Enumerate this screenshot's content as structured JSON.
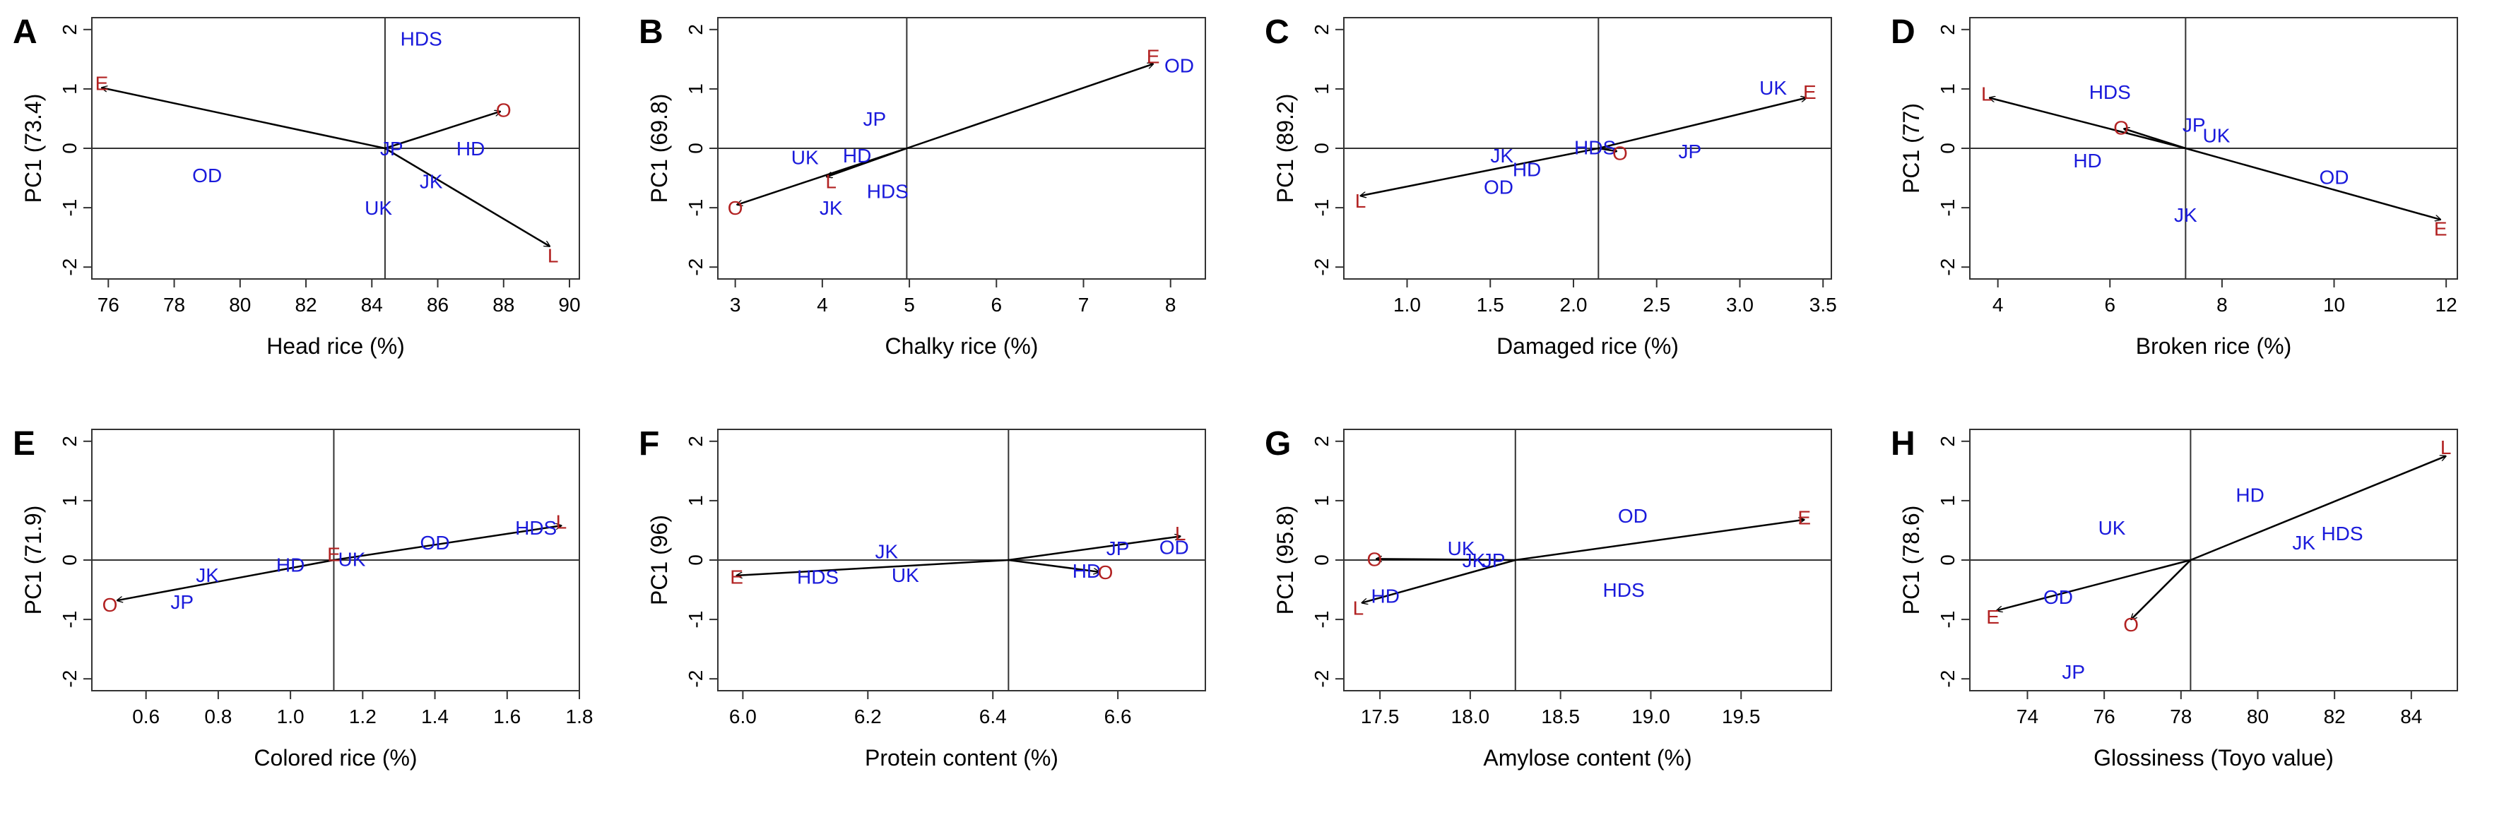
{
  "colors": {
    "genotype": "#1a1adb",
    "environment": "#b22222",
    "axes": "#333333",
    "arrow": "#000000"
  },
  "chart_data": [
    {
      "panel": "A",
      "type": "scatter",
      "xlabel": "Head rice (%)",
      "ylabel": "PC1 (73.4)",
      "xlim": [
        75.5,
        90.3
      ],
      "ylim": [
        -2.2,
        2.2
      ],
      "xticks": [
        76,
        78,
        80,
        82,
        84,
        86,
        88,
        90
      ],
      "xtick_labels": [
        "76",
        "78",
        "80",
        "82",
        "84",
        "86",
        "88",
        "90"
      ],
      "yticks": [
        -2,
        -1,
        0,
        1,
        2
      ],
      "ytick_labels": [
        "-2",
        "-1",
        "0",
        "1",
        "2"
      ],
      "ref_x": 84.4,
      "genotypes": [
        {
          "label": "HDS",
          "x": 85.5,
          "y": 1.85
        },
        {
          "label": "JP",
          "x": 84.6,
          "y": 0.0
        },
        {
          "label": "HD",
          "x": 87.0,
          "y": 0.0
        },
        {
          "label": "OD",
          "x": 79.0,
          "y": -0.45
        },
        {
          "label": "UK",
          "x": 84.2,
          "y": -1.0
        },
        {
          "label": "JK",
          "x": 85.8,
          "y": -0.55
        }
      ],
      "environments": [
        {
          "label": "E",
          "x": 75.8,
          "y": 1.1
        },
        {
          "label": "O",
          "x": 88.0,
          "y": 0.65
        },
        {
          "label": "L",
          "x": 89.5,
          "y": -1.8
        }
      ],
      "arrows": [
        {
          "from": [
            84.4,
            0.0
          ],
          "to": [
            75.8,
            1.02
          ]
        },
        {
          "from": [
            84.4,
            0.0
          ],
          "to": [
            87.9,
            0.62
          ]
        },
        {
          "from": [
            84.4,
            0.0
          ],
          "to": [
            89.4,
            -1.65
          ]
        }
      ]
    },
    {
      "panel": "B",
      "type": "scatter",
      "xlabel": "Chalky rice (%)",
      "ylabel": "PC1 (69.8)",
      "xlim": [
        2.8,
        8.4
      ],
      "ylim": [
        -2.2,
        2.2
      ],
      "xticks": [
        3,
        4,
        5,
        6,
        7,
        8
      ],
      "xtick_labels": [
        "3",
        "4",
        "5",
        "6",
        "7",
        "8"
      ],
      "yticks": [
        -2,
        -1,
        0,
        1,
        2
      ],
      "ytick_labels": [
        "-2",
        "-1",
        "0",
        "1",
        "2"
      ],
      "ref_x": 4.97,
      "genotypes": [
        {
          "label": "OD",
          "x": 8.1,
          "y": 1.4
        },
        {
          "label": "JP",
          "x": 4.6,
          "y": 0.5
        },
        {
          "label": "UK",
          "x": 3.8,
          "y": -0.15
        },
        {
          "label": "HD",
          "x": 4.4,
          "y": -0.12
        },
        {
          "label": "HDS",
          "x": 4.75,
          "y": -0.72
        },
        {
          "label": "JK",
          "x": 4.1,
          "y": -1.0
        }
      ],
      "environments": [
        {
          "label": "E",
          "x": 7.8,
          "y": 1.55
        },
        {
          "label": "L",
          "x": 4.1,
          "y": -0.55
        },
        {
          "label": "O",
          "x": 3.0,
          "y": -1.0
        }
      ],
      "arrows": [
        {
          "from": [
            4.97,
            0.0
          ],
          "to": [
            7.8,
            1.42
          ]
        },
        {
          "from": [
            4.97,
            0.0
          ],
          "to": [
            4.05,
            -0.48
          ]
        },
        {
          "from": [
            4.97,
            0.0
          ],
          "to": [
            3.02,
            -0.95
          ]
        }
      ]
    },
    {
      "panel": "C",
      "type": "scatter",
      "xlabel": "Damaged rice (%)",
      "ylabel": "PC1 (89.2)",
      "xlim": [
        0.62,
        3.55
      ],
      "ylim": [
        -2.2,
        2.2
      ],
      "xticks": [
        1.0,
        1.5,
        2.0,
        2.5,
        3.0,
        3.5
      ],
      "xtick_labels": [
        "1.0",
        "1.5",
        "2.0",
        "2.5",
        "3.0",
        "3.5"
      ],
      "yticks": [
        -2,
        -1,
        0,
        1,
        2
      ],
      "ytick_labels": [
        "-2",
        "-1",
        "0",
        "1",
        "2"
      ],
      "ref_x": 2.15,
      "genotypes": [
        {
          "label": "UK",
          "x": 3.2,
          "y": 1.02
        },
        {
          "label": "HDS",
          "x": 2.13,
          "y": 0.02
        },
        {
          "label": "JP",
          "x": 2.7,
          "y": -0.05
        },
        {
          "label": "JK",
          "x": 1.57,
          "y": -0.12
        },
        {
          "label": "HD",
          "x": 1.72,
          "y": -0.35
        },
        {
          "label": "OD",
          "x": 1.55,
          "y": -0.65
        }
      ],
      "environments": [
        {
          "label": "E",
          "x": 3.42,
          "y": 0.95
        },
        {
          "label": "O",
          "x": 2.28,
          "y": -0.08
        },
        {
          "label": "L",
          "x": 0.72,
          "y": -0.88
        }
      ],
      "arrows": [
        {
          "from": [
            2.15,
            0.0
          ],
          "to": [
            3.4,
            0.85
          ]
        },
        {
          "from": [
            2.15,
            0.0
          ],
          "to": [
            2.26,
            -0.05
          ]
        },
        {
          "from": [
            2.15,
            0.0
          ],
          "to": [
            0.72,
            -0.8
          ]
        }
      ]
    },
    {
      "panel": "D",
      "type": "scatter",
      "xlabel": "Broken rice (%)",
      "ylabel": "PC1 (77)",
      "xlim": [
        3.5,
        12.2
      ],
      "ylim": [
        -2.2,
        2.2
      ],
      "xticks": [
        4,
        6,
        8,
        10,
        12
      ],
      "xtick_labels": [
        "4",
        "6",
        "8",
        "10",
        "12"
      ],
      "yticks": [
        -2,
        -1,
        0,
        1,
        2
      ],
      "ytick_labels": [
        "-2",
        "-1",
        "0",
        "1",
        "2"
      ],
      "ref_x": 7.35,
      "genotypes": [
        {
          "label": "HDS",
          "x": 6.0,
          "y": 0.95
        },
        {
          "label": "JP",
          "x": 7.5,
          "y": 0.4
        },
        {
          "label": "UK",
          "x": 7.9,
          "y": 0.22
        },
        {
          "label": "HD",
          "x": 5.6,
          "y": -0.2
        },
        {
          "label": "OD",
          "x": 10.0,
          "y": -0.48
        },
        {
          "label": "JK",
          "x": 7.35,
          "y": -1.12
        }
      ],
      "environments": [
        {
          "label": "L",
          "x": 3.8,
          "y": 0.92
        },
        {
          "label": "O",
          "x": 6.2,
          "y": 0.35
        },
        {
          "label": "E",
          "x": 11.9,
          "y": -1.35
        }
      ],
      "arrows": [
        {
          "from": [
            7.35,
            0.0
          ],
          "to": [
            3.85,
            0.85
          ]
        },
        {
          "from": [
            7.35,
            0.0
          ],
          "to": [
            6.25,
            0.33
          ]
        },
        {
          "from": [
            7.35,
            0.0
          ],
          "to": [
            11.9,
            -1.2
          ]
        }
      ]
    },
    {
      "panel": "E",
      "type": "scatter",
      "xlabel": "Colored rice (%)",
      "ylabel": "PC1 (71.9)",
      "xlim": [
        0.45,
        1.8
      ],
      "ylim": [
        -2.2,
        2.2
      ],
      "xticks": [
        0.6,
        0.8,
        1.0,
        1.2,
        1.4,
        1.6,
        1.8
      ],
      "xtick_labels": [
        "0.6",
        "0.8",
        "1.0",
        "1.2",
        "1.4",
        "1.6",
        "1.8"
      ],
      "yticks": [
        -2,
        -1,
        0,
        1,
        2
      ],
      "ytick_labels": [
        "-2",
        "-1",
        "0",
        "1",
        "2"
      ],
      "ref_x": 1.12,
      "genotypes": [
        {
          "label": "HDS",
          "x": 1.68,
          "y": 0.55
        },
        {
          "label": "OD",
          "x": 1.4,
          "y": 0.3
        },
        {
          "label": "UK",
          "x": 1.17,
          "y": 0.02
        },
        {
          "label": "HD",
          "x": 1.0,
          "y": -0.08
        },
        {
          "label": "JK",
          "x": 0.77,
          "y": -0.25
        },
        {
          "label": "JP",
          "x": 0.7,
          "y": -0.7
        }
      ],
      "environments": [
        {
          "label": "L",
          "x": 1.75,
          "y": 0.65
        },
        {
          "label": "E",
          "x": 1.12,
          "y": 0.1
        },
        {
          "label": "O",
          "x": 0.5,
          "y": -0.75
        }
      ],
      "arrows": [
        {
          "from": [
            1.12,
            0.0
          ],
          "to": [
            1.75,
            0.58
          ]
        },
        {
          "from": [
            1.12,
            0.0
          ],
          "to": [
            0.52,
            -0.68
          ]
        }
      ]
    },
    {
      "panel": "F",
      "type": "scatter",
      "xlabel": "Protein content (%)",
      "ylabel": "PC1 (96)",
      "xlim": [
        5.96,
        6.74
      ],
      "ylim": [
        -2.2,
        2.2
      ],
      "xticks": [
        6.0,
        6.2,
        6.4,
        6.6
      ],
      "xtick_labels": [
        "6.0",
        "6.2",
        "6.4",
        "6.6"
      ],
      "yticks": [
        -2,
        -1,
        0,
        1,
        2
      ],
      "ytick_labels": [
        "-2",
        "-1",
        "0",
        "1",
        "2"
      ],
      "ref_x": 6.425,
      "genotypes": [
        {
          "label": "JK",
          "x": 6.23,
          "y": 0.15
        },
        {
          "label": "HDS",
          "x": 6.12,
          "y": -0.28
        },
        {
          "label": "UK",
          "x": 6.26,
          "y": -0.25
        },
        {
          "label": "JP",
          "x": 6.6,
          "y": 0.2
        },
        {
          "label": "OD",
          "x": 6.69,
          "y": 0.22
        },
        {
          "label": "HD",
          "x": 6.55,
          "y": -0.18
        }
      ],
      "environments": [
        {
          "label": "E",
          "x": 5.99,
          "y": -0.28
        },
        {
          "label": "O",
          "x": 6.58,
          "y": -0.2
        },
        {
          "label": "L",
          "x": 6.7,
          "y": 0.45
        }
      ],
      "arrows": [
        {
          "from": [
            6.425,
            0.0
          ],
          "to": [
            5.99,
            -0.26
          ]
        },
        {
          "from": [
            6.425,
            0.0
          ],
          "to": [
            6.57,
            -0.2
          ]
        },
        {
          "from": [
            6.425,
            0.0
          ],
          "to": [
            6.7,
            0.4
          ]
        }
      ]
    },
    {
      "panel": "G",
      "type": "scatter",
      "xlabel": "Amylose content (%)",
      "ylabel": "PC1 (95.8)",
      "xlim": [
        17.3,
        20.0
      ],
      "ylim": [
        -2.2,
        2.2
      ],
      "xticks": [
        17.5,
        18.0,
        18.5,
        19.0,
        19.5
      ],
      "xtick_labels": [
        "17.5",
        "18.0",
        "18.5",
        "19.0",
        "19.5"
      ],
      "yticks": [
        -2,
        -1,
        0,
        1,
        2
      ],
      "ytick_labels": [
        "-2",
        "-1",
        "0",
        "1",
        "2"
      ],
      "ref_x": 18.25,
      "genotypes": [
        {
          "label": "OD",
          "x": 18.9,
          "y": 0.75
        },
        {
          "label": "UK",
          "x": 17.95,
          "y": 0.2
        },
        {
          "label": "JK",
          "x": 18.02,
          "y": 0.0
        },
        {
          "label": "JP",
          "x": 18.13,
          "y": 0.0
        },
        {
          "label": "HDS",
          "x": 18.85,
          "y": -0.5
        },
        {
          "label": "HD",
          "x": 17.53,
          "y": -0.6
        }
      ],
      "environments": [
        {
          "label": "E",
          "x": 19.85,
          "y": 0.72
        },
        {
          "label": "O",
          "x": 17.47,
          "y": 0.02
        },
        {
          "label": "L",
          "x": 17.38,
          "y": -0.8
        }
      ],
      "arrows": [
        {
          "from": [
            18.25,
            0.0
          ],
          "to": [
            19.85,
            0.68
          ]
        },
        {
          "from": [
            18.25,
            0.0
          ],
          "to": [
            17.48,
            0.02
          ]
        },
        {
          "from": [
            18.25,
            0.0
          ],
          "to": [
            17.4,
            -0.72
          ]
        }
      ]
    },
    {
      "panel": "H",
      "type": "scatter",
      "xlabel": "Glossiness (Toyo value)",
      "ylabel": "PC1 (78.6)",
      "xlim": [
        72.5,
        85.2
      ],
      "ylim": [
        -2.2,
        2.2
      ],
      "xticks": [
        74,
        76,
        78,
        80,
        82,
        84
      ],
      "xtick_labels": [
        "74",
        "76",
        "78",
        "80",
        "82",
        "84"
      ],
      "yticks": [
        -2,
        -1,
        0,
        1,
        2
      ],
      "ytick_labels": [
        "-2",
        "-1",
        "0",
        "1",
        "2"
      ],
      "ref_x": 78.25,
      "genotypes": [
        {
          "label": "HD",
          "x": 79.8,
          "y": 1.1
        },
        {
          "label": "UK",
          "x": 76.2,
          "y": 0.55
        },
        {
          "label": "JK",
          "x": 81.2,
          "y": 0.3
        },
        {
          "label": "HDS",
          "x": 82.2,
          "y": 0.45
        },
        {
          "label": "OD",
          "x": 74.8,
          "y": -0.62
        },
        {
          "label": "JP",
          "x": 75.2,
          "y": -1.88
        }
      ],
      "environments": [
        {
          "label": "L",
          "x": 84.9,
          "y": 1.9
        },
        {
          "label": "E",
          "x": 73.1,
          "y": -0.95
        },
        {
          "label": "O",
          "x": 76.7,
          "y": -1.08
        }
      ],
      "arrows": [
        {
          "from": [
            78.25,
            0.0
          ],
          "to": [
            84.9,
            1.75
          ]
        },
        {
          "from": [
            78.25,
            0.0
          ],
          "to": [
            73.2,
            -0.85
          ]
        },
        {
          "from": [
            78.25,
            0.0
          ],
          "to": [
            76.7,
            -1.0
          ]
        }
      ]
    }
  ]
}
